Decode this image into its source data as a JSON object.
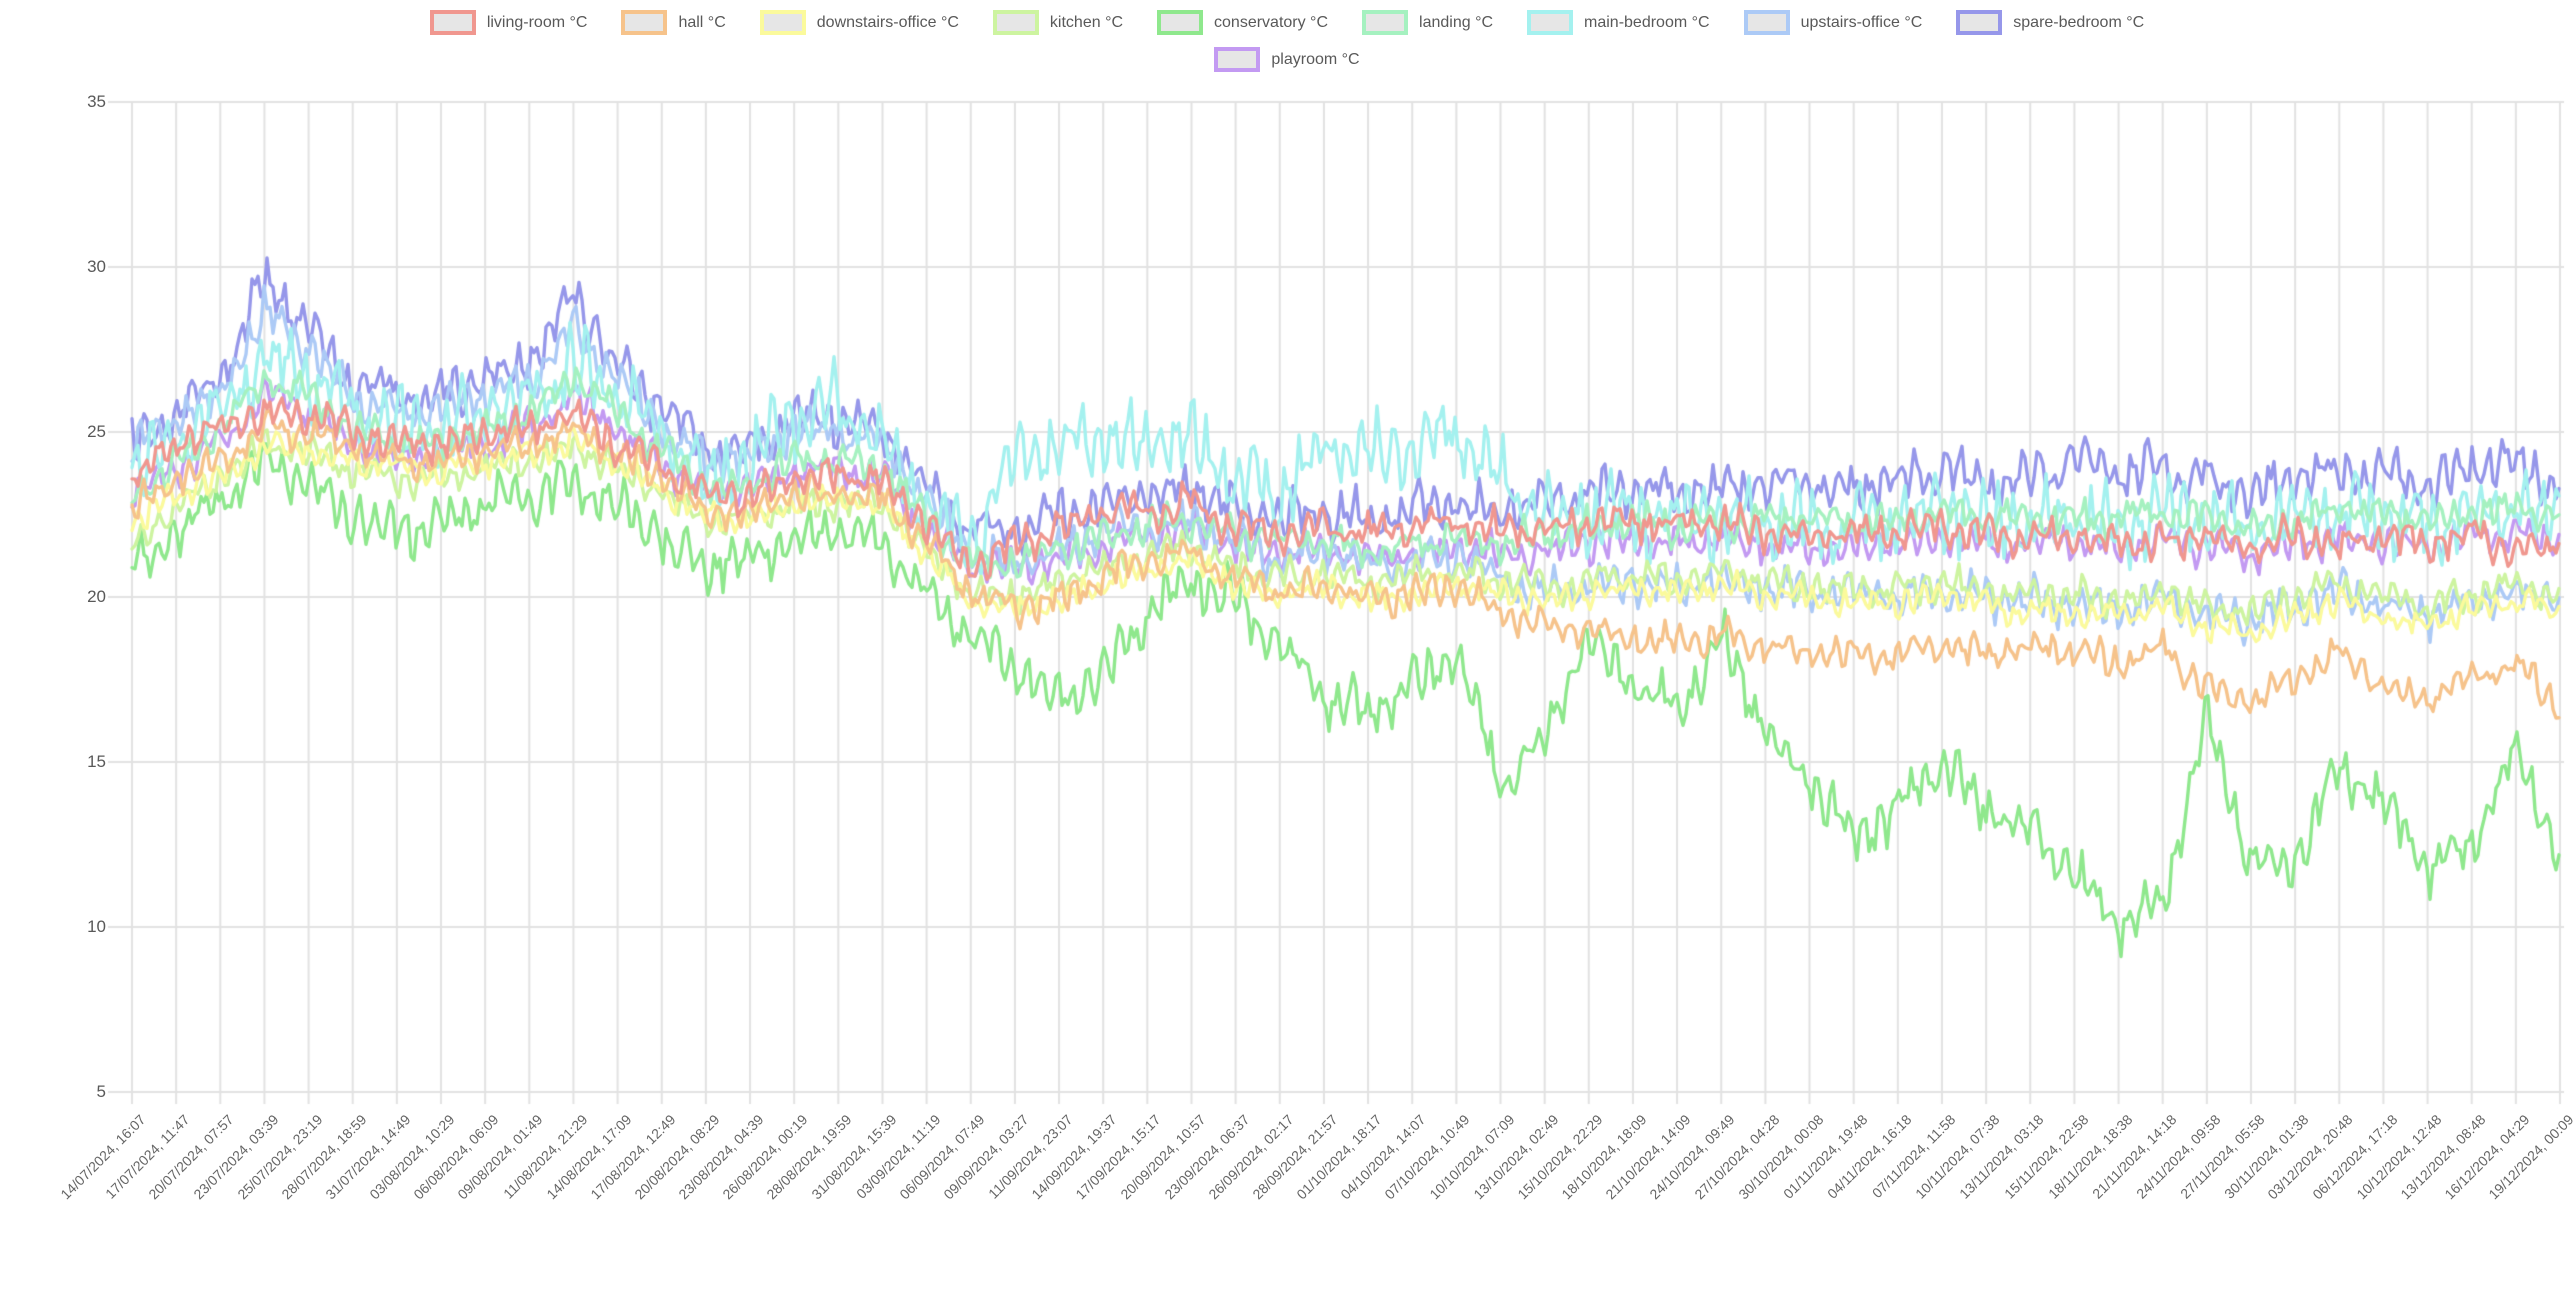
{
  "chart_data": {
    "type": "line",
    "title": "",
    "xlabel": "",
    "ylabel": "",
    "ylim": [
      5,
      35
    ],
    "grid": true,
    "legend_position": "top",
    "legend_rows": [
      9,
      1
    ],
    "y_ticks": [
      35,
      30,
      25,
      20,
      15,
      10,
      5
    ],
    "x_labels": [
      "14/07/2024, 16:07",
      "17/07/2024, 11:47",
      "20/07/2024, 07:57",
      "23/07/2024, 03:39",
      "25/07/2024, 23:19",
      "28/07/2024, 18:59",
      "31/07/2024, 14:49",
      "03/08/2024, 10:29",
      "06/08/2024, 06:09",
      "09/08/2024, 01:49",
      "11/08/2024, 21:29",
      "14/08/2024, 17:09",
      "17/08/2024, 12:49",
      "20/08/2024, 08:29",
      "23/08/2024, 04:39",
      "26/08/2024, 00:19",
      "28/08/2024, 19:59",
      "31/08/2024, 15:39",
      "03/09/2024, 11:19",
      "06/09/2024, 07:49",
      "09/09/2024, 03:27",
      "11/09/2024, 23:07",
      "14/09/2024, 19:37",
      "17/09/2024, 15:17",
      "20/09/2024, 10:57",
      "23/09/2024, 06:37",
      "26/09/2024, 02:17",
      "28/09/2024, 21:57",
      "01/10/2024, 18:17",
      "04/10/2024, 14:07",
      "07/10/2024, 10:49",
      "10/10/2024, 07:09",
      "13/10/2024, 02:49",
      "15/10/2024, 22:29",
      "18/10/2024, 18:09",
      "21/10/2024, 14:09",
      "24/10/2024, 09:49",
      "27/10/2024, 04:28",
      "30/10/2024, 00:08",
      "01/11/2024, 19:48",
      "04/11/2024, 16:18",
      "07/11/2024, 11:58",
      "10/11/2024, 07:38",
      "13/11/2024, 03:18",
      "15/11/2024, 22:58",
      "18/11/2024, 18:38",
      "21/11/2024, 14:18",
      "24/11/2024, 09:58",
      "27/11/2024, 05:58",
      "30/11/2024, 01:38",
      "03/12/2024, 20:48",
      "06/12/2024, 17:18",
      "10/12/2024, 12:48",
      "13/12/2024, 08:48",
      "16/12/2024, 04:29",
      "19/12/2024, 00:09"
    ],
    "series": [
      {
        "name": "living-room °C",
        "color": "#F0978F",
        "band_halfwidth_c": 0.55,
        "values": [
          23.6,
          24.6,
          25.1,
          25.6,
          25.5,
          25.0,
          24.6,
          24.6,
          25.0,
          25.1,
          25.6,
          24.6,
          24.0,
          23.1,
          23.1,
          23.6,
          23.6,
          23.5,
          22.2,
          20.9,
          21.6,
          22.1,
          22.6,
          22.6,
          22.9,
          22.1,
          21.9,
          22.1,
          21.9,
          22.1,
          22.3,
          22.1,
          22.0,
          22.3,
          22.3,
          22.2,
          22.2,
          22.0,
          22.0,
          22.0,
          22.0,
          22.2,
          21.9,
          21.9,
          21.9,
          21.6,
          21.6,
          21.9,
          21.6,
          21.9,
          21.6,
          21.9,
          21.6,
          22.0,
          21.3,
          21.6
        ]
      },
      {
        "name": "hall °C",
        "color": "#F6C38B",
        "band_halfwidth_c": 0.5,
        "values": [
          22.6,
          23.6,
          24.1,
          25.1,
          25.0,
          24.5,
          24.1,
          24.1,
          24.4,
          24.6,
          25.1,
          24.4,
          23.6,
          22.6,
          22.6,
          23.1,
          23.1,
          23.0,
          21.6,
          20.1,
          19.6,
          19.9,
          20.6,
          21.1,
          21.4,
          20.6,
          20.1,
          20.4,
          19.9,
          20.1,
          20.3,
          19.6,
          19.1,
          19.0,
          18.8,
          18.6,
          18.8,
          18.5,
          18.3,
          18.3,
          18.2,
          18.6,
          18.2,
          18.5,
          18.3,
          18.0,
          18.5,
          17.2,
          16.8,
          17.5,
          18.3,
          17.3,
          16.8,
          17.5,
          18.0,
          16.7
        ]
      },
      {
        "name": "downstairs-office °C",
        "color": "#FBFA9C",
        "band_halfwidth_c": 0.45,
        "values": [
          22.1,
          23.1,
          23.6,
          24.6,
          24.5,
          24.1,
          23.9,
          23.9,
          24.1,
          24.3,
          24.7,
          24.1,
          23.3,
          22.4,
          22.4,
          22.9,
          22.9,
          22.8,
          21.3,
          19.9,
          19.6,
          19.9,
          20.4,
          20.9,
          21.1,
          20.4,
          20.1,
          20.3,
          19.9,
          20.1,
          20.4,
          20.1,
          19.9,
          20.1,
          20.3,
          20.1,
          20.3,
          20.1,
          19.9,
          19.9,
          19.8,
          20.1,
          19.7,
          19.6,
          19.5,
          19.4,
          19.7,
          19.1,
          18.9,
          19.4,
          19.9,
          19.4,
          19.1,
          19.6,
          19.9,
          19.6
        ]
      },
      {
        "name": "kitchen °C",
        "color": "#CDF4A0",
        "band_halfwidth_c": 0.5,
        "values": [
          21.6,
          22.6,
          23.6,
          24.6,
          24.4,
          23.9,
          23.6,
          23.6,
          23.9,
          24.1,
          24.6,
          23.9,
          23.1,
          22.3,
          22.4,
          22.9,
          22.9,
          22.8,
          21.4,
          20.1,
          20.1,
          20.4,
          20.9,
          21.3,
          21.5,
          20.9,
          20.6,
          20.8,
          20.4,
          20.6,
          20.8,
          20.5,
          20.3,
          20.5,
          20.7,
          20.5,
          20.7,
          20.5,
          20.3,
          20.3,
          20.2,
          20.5,
          20.1,
          20.1,
          20.0,
          19.9,
          20.2,
          19.7,
          19.5,
          20.0,
          20.4,
          20.0,
          19.7,
          20.1,
          20.4,
          20.1
        ]
      },
      {
        "name": "conservatory °C",
        "color": "#8FE88D",
        "band_halfwidth_c": 0.8,
        "values": [
          21.0,
          22.0,
          23.0,
          24.0,
          23.5,
          22.5,
          22.0,
          22.3,
          22.8,
          23.0,
          23.5,
          22.8,
          21.8,
          21.0,
          21.2,
          21.8,
          22.0,
          21.8,
          20.0,
          18.8,
          18.0,
          17.0,
          17.5,
          19.5,
          20.5,
          20.0,
          18.5,
          17.0,
          16.5,
          17.3,
          18.3,
          14.2,
          15.8,
          18.7,
          17.5,
          16.5,
          18.8,
          16.0,
          14.5,
          12.6,
          13.5,
          15.0,
          13.5,
          13.0,
          11.5,
          10.0,
          10.8,
          16.3,
          12.0,
          12.0,
          14.8,
          13.8,
          11.8,
          12.6,
          15.4,
          12.2
        ]
      },
      {
        "name": "landing °C",
        "color": "#A5F1C0",
        "band_halfwidth_c": 0.55,
        "values": [
          23.1,
          24.1,
          25.1,
          26.6,
          26.1,
          25.1,
          24.6,
          24.6,
          25.1,
          25.6,
          26.6,
          25.6,
          24.4,
          23.3,
          23.4,
          24.1,
          24.1,
          23.9,
          22.4,
          21.1,
          21.1,
          21.4,
          21.9,
          22.1,
          22.3,
          21.9,
          21.6,
          21.8,
          21.4,
          21.6,
          21.8,
          21.6,
          21.9,
          22.1,
          22.3,
          22.1,
          22.3,
          22.4,
          22.3,
          22.3,
          22.4,
          22.6,
          22.4,
          22.4,
          22.5,
          22.3,
          22.6,
          22.4,
          22.1,
          22.4,
          22.6,
          22.5,
          22.3,
          22.6,
          22.7,
          22.4
        ]
      },
      {
        "name": "main-bedroom °C",
        "color": "#A4F1EF",
        "band_halfwidth_c": 1.15,
        "values": [
          23.9,
          24.6,
          25.6,
          27.1,
          26.6,
          25.6,
          25.1,
          25.1,
          25.6,
          26.1,
          27.1,
          26.1,
          24.9,
          23.6,
          24.1,
          25.6,
          25.9,
          24.6,
          22.9,
          21.6,
          24.1,
          24.6,
          24.9,
          24.6,
          24.9,
          23.6,
          23.1,
          24.6,
          24.4,
          24.6,
          24.9,
          23.6,
          22.4,
          22.6,
          22.4,
          22.3,
          22.4,
          22.3,
          22.1,
          22.1,
          22.3,
          22.6,
          22.3,
          22.3,
          22.4,
          22.1,
          22.5,
          22.3,
          21.9,
          22.3,
          22.5,
          22.4,
          22.1,
          22.5,
          22.6,
          22.3
        ]
      },
      {
        "name": "upstairs-office °C",
        "color": "#ACCAF6",
        "band_halfwidth_c": 0.65,
        "values": [
          24.4,
          25.4,
          26.1,
          28.6,
          27.6,
          26.1,
          25.6,
          25.6,
          26.1,
          26.6,
          28.1,
          26.6,
          25.1,
          24.1,
          24.4,
          25.1,
          25.1,
          24.6,
          22.9,
          21.4,
          21.1,
          21.4,
          21.9,
          22.1,
          22.3,
          21.6,
          21.1,
          21.4,
          20.9,
          21.1,
          21.3,
          20.6,
          20.1,
          20.3,
          20.5,
          20.3,
          20.5,
          20.3,
          20.1,
          20.1,
          20.0,
          20.3,
          19.9,
          19.9,
          19.8,
          19.7,
          20.0,
          19.5,
          19.3,
          19.8,
          20.2,
          19.8,
          19.5,
          19.9,
          20.2,
          19.9
        ]
      },
      {
        "name": "spare-bedroom °C",
        "color": "#9697EA",
        "band_halfwidth_c": 0.75,
        "values": [
          24.6,
          25.6,
          26.6,
          29.6,
          28.1,
          26.6,
          26.1,
          26.1,
          26.6,
          27.1,
          29.1,
          27.1,
          25.6,
          24.4,
          24.6,
          25.4,
          25.4,
          24.9,
          23.3,
          22.1,
          22.1,
          22.4,
          22.9,
          23.1,
          23.3,
          22.6,
          22.3,
          22.6,
          22.3,
          22.6,
          22.9,
          22.6,
          22.9,
          23.1,
          23.3,
          23.1,
          23.3,
          23.4,
          23.3,
          23.3,
          23.4,
          23.9,
          23.4,
          23.6,
          24.1,
          23.6,
          23.9,
          23.6,
          23.1,
          23.6,
          23.9,
          23.7,
          23.4,
          23.9,
          24.1,
          23.4
        ]
      },
      {
        "name": "playroom °C",
        "color": "#C39AF2",
        "band_halfwidth_c": 0.55,
        "values": [
          23.1,
          23.9,
          24.6,
          26.1,
          25.6,
          24.6,
          24.3,
          24.3,
          24.6,
          25.1,
          26.1,
          25.1,
          24.1,
          23.1,
          23.3,
          23.9,
          23.9,
          23.6,
          22.1,
          20.9,
          20.9,
          21.1,
          21.6,
          21.9,
          22.1,
          21.5,
          21.3,
          21.5,
          21.1,
          21.3,
          21.5,
          21.3,
          21.4,
          21.6,
          21.7,
          21.6,
          21.7,
          21.6,
          21.5,
          21.5,
          21.6,
          21.9,
          21.5,
          21.6,
          21.7,
          21.5,
          21.8,
          21.5,
          21.3,
          21.6,
          21.8,
          21.7,
          21.5,
          21.8,
          21.9,
          21.6
        ]
      }
    ],
    "style": {
      "grid_color": "#e2e2e2",
      "tick_text_color": "#666666",
      "axis_text_color": "#595959",
      "legend_swatch_fill": "#e6e6e6",
      "background": "#ffffff"
    }
  }
}
